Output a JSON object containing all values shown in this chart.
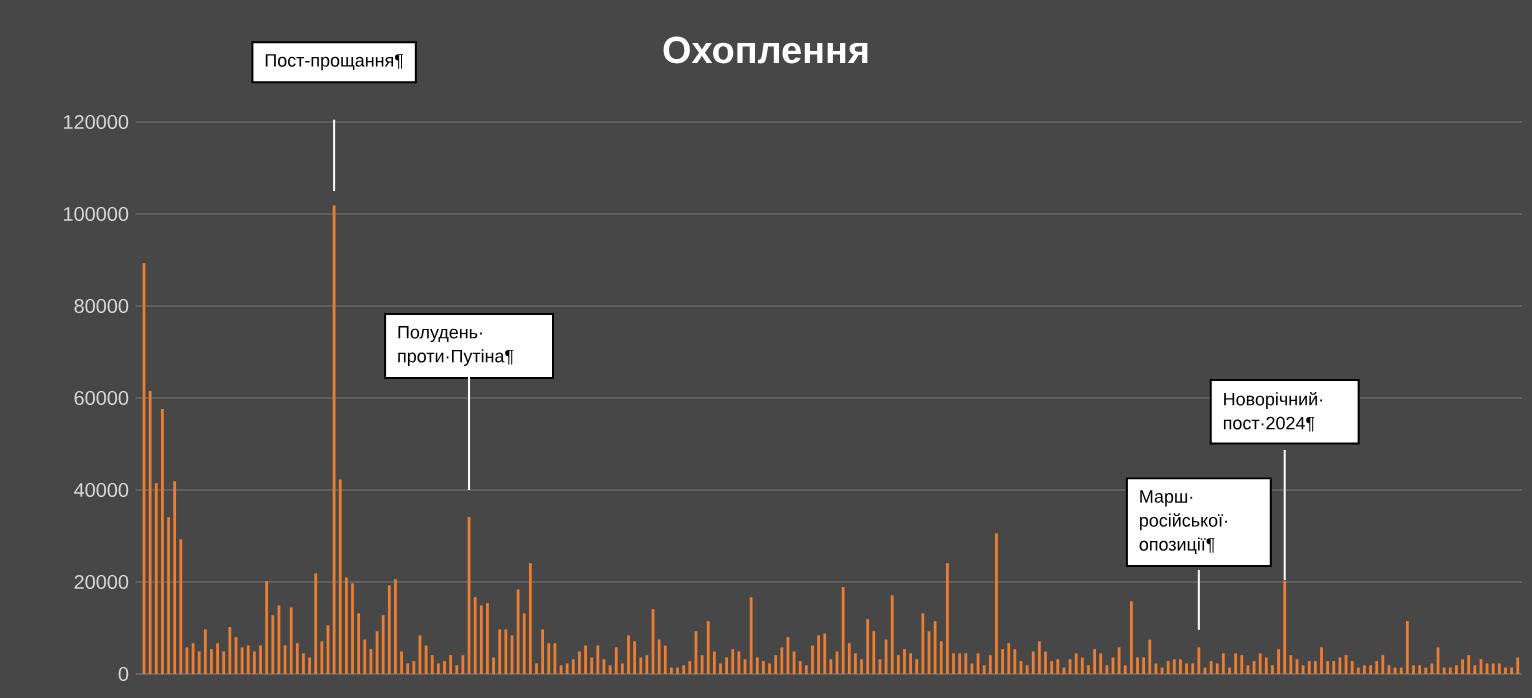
{
  "chart_data": {
    "type": "bar",
    "title": "Охоплення",
    "categories": [
      null,
      null,
      null,
      null,
      null,
      null,
      null,
      null,
      null,
      null,
      null,
      null,
      null,
      null,
      null,
      null,
      null,
      null,
      null,
      null,
      null,
      null,
      null,
      null,
      null,
      null,
      null,
      null,
      null,
      null,
      null,
      null,
      null,
      null,
      null,
      null,
      null,
      null,
      null,
      null,
      null,
      null,
      null,
      null,
      null,
      null,
      null,
      null,
      null,
      null,
      null,
      null,
      null,
      null,
      null,
      null,
      null,
      null,
      null,
      null,
      null,
      null,
      null,
      null,
      null,
      null,
      null,
      null,
      null,
      null,
      null,
      null,
      null,
      null,
      null,
      null,
      null,
      null,
      null,
      null,
      null,
      null,
      null,
      null,
      null,
      null,
      null,
      null,
      null,
      null,
      null,
      null,
      null,
      null,
      null,
      null,
      null,
      null,
      null,
      null,
      null,
      null,
      null,
      null,
      null,
      null,
      null,
      null,
      null,
      null,
      null,
      null,
      null,
      null,
      null,
      null,
      null,
      null,
      null,
      null,
      null,
      null,
      null,
      null,
      null,
      null,
      null,
      null,
      null,
      null,
      null,
      null,
      null,
      null,
      null,
      null,
      null,
      null,
      null,
      null,
      null,
      null,
      null,
      null,
      null,
      null,
      null,
      null,
      null,
      null,
      null,
      null,
      null,
      null,
      null,
      null,
      null,
      null,
      null,
      null,
      null,
      null,
      null,
      null,
      null,
      null,
      null,
      null,
      null,
      null,
      null,
      null,
      null,
      null,
      null,
      null,
      null,
      null,
      null,
      null,
      null,
      null,
      null,
      null,
      null,
      null,
      null,
      null,
      null,
      null,
      null,
      null,
      null,
      null,
      null,
      null,
      null,
      null,
      null,
      null,
      null,
      null,
      null,
      null,
      null,
      null,
      null,
      null,
      null,
      null,
      null,
      null,
      null,
      null,
      null,
      null,
      null,
      null,
      null,
      null,
      null,
      null,
      null,
      null,
      null
    ],
    "values": [
      89300,
      61500,
      41500,
      57600,
      34100,
      41900,
      29300,
      5800,
      6700,
      4900,
      9700,
      5400,
      6700,
      4900,
      10200,
      8000,
      5800,
      6200,
      4900,
      6200,
      20200,
      12800,
      14900,
      6200,
      14500,
      6700,
      4500,
      3600,
      21900,
      7100,
      10600,
      101900,
      42300,
      21000,
      19700,
      13200,
      7500,
      5400,
      9300,
      12800,
      19300,
      20600,
      4900,
      2300,
      2800,
      8400,
      6200,
      4100,
      2300,
      2800,
      4100,
      1900,
      4100,
      34100,
      16700,
      14900,
      15400,
      3600,
      9700,
      9700,
      8400,
      18400,
      13200,
      24100,
      2300,
      9700,
      6700,
      6700,
      1900,
      2300,
      3200,
      4900,
      6200,
      3600,
      6200,
      3200,
      1900,
      5800,
      2300,
      8400,
      7100,
      3600,
      4100,
      14100,
      7500,
      6200,
      1400,
      1400,
      1900,
      2800,
      9300,
      4100,
      11500,
      4900,
      2300,
      3600,
      5400,
      4900,
      3200,
      16700,
      3600,
      2800,
      2300,
      4100,
      5800,
      8000,
      4900,
      2800,
      1900,
      6200,
      8400,
      8800,
      3200,
      4900,
      18900,
      6700,
      4500,
      3200,
      11900,
      9300,
      3200,
      7500,
      17100,
      4100,
      5400,
      4500,
      3200,
      13200,
      9300,
      11500,
      7100,
      24100,
      4500,
      4500,
      4500,
      2300,
      4500,
      1900,
      4100,
      30600,
      5400,
      6700,
      5400,
      2800,
      1900,
      4900,
      7100,
      4900,
      2800,
      3200,
      1400,
      3200,
      4500,
      3600,
      1900,
      5400,
      4500,
      1900,
      3600,
      5800,
      1900,
      15800,
      3600,
      3600,
      7500,
      2300,
      1400,
      2800,
      3200,
      3200,
      2300,
      2300,
      5800,
      1400,
      2800,
      2300,
      4500,
      1400,
      4500,
      4100,
      1900,
      2800,
      4500,
      3600,
      1900,
      5400,
      20200,
      4100,
      3200,
      1900,
      2800,
      2800,
      5800,
      2800,
      2800,
      3600,
      4100,
      2800,
      1400,
      1900,
      1900,
      2800,
      4100,
      1900,
      1400,
      1400,
      11500,
      1900,
      1900,
      1400,
      2300,
      5800,
      1400,
      1400,
      1900,
      3200,
      4100,
      1900,
      3200,
      2300,
      2300,
      2300,
      1400,
      1400,
      3600
    ],
    "color": "#ed7d31",
    "ylim": [
      0,
      120000
    ],
    "yticks": [
      0,
      20000,
      40000,
      60000,
      80000,
      100000,
      120000
    ],
    "grid": "y",
    "annotations": [
      "Пост-прощання¶",
      "Полудень· проти·Путіна¶",
      "Марш· російської· опозиції¶",
      "Новорічний· пост·2024¶"
    ]
  }
}
